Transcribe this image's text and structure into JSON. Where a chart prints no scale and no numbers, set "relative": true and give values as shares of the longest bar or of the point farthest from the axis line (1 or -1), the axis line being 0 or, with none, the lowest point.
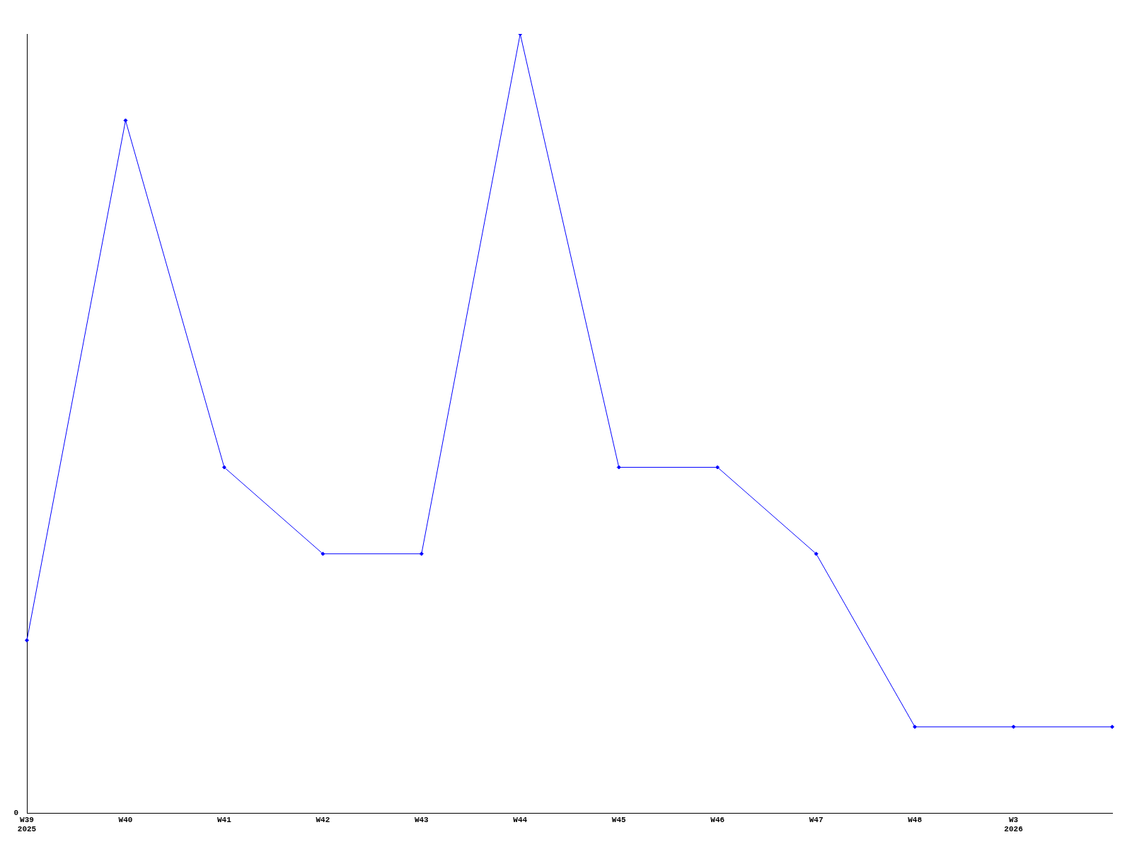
{
  "chart_data": {
    "type": "line",
    "relative": true,
    "categories": [
      "W39\n2025",
      "W40",
      "W41",
      "W42",
      "W43",
      "W44",
      "W45",
      "W46",
      "W47",
      "W48",
      "W3\n2026",
      null
    ],
    "series": [
      {
        "color": "#0000ff",
        "values": [
          0.222,
          0.889,
          0.444,
          0.333,
          0.333,
          1,
          0.444,
          0.444,
          0.333,
          0.111,
          0.111,
          0.111
        ]
      }
    ],
    "annotations": [
      "0"
    ],
    "marker": "diamond",
    "line_style": "solid",
    "grid": false,
    "legend": false
  }
}
